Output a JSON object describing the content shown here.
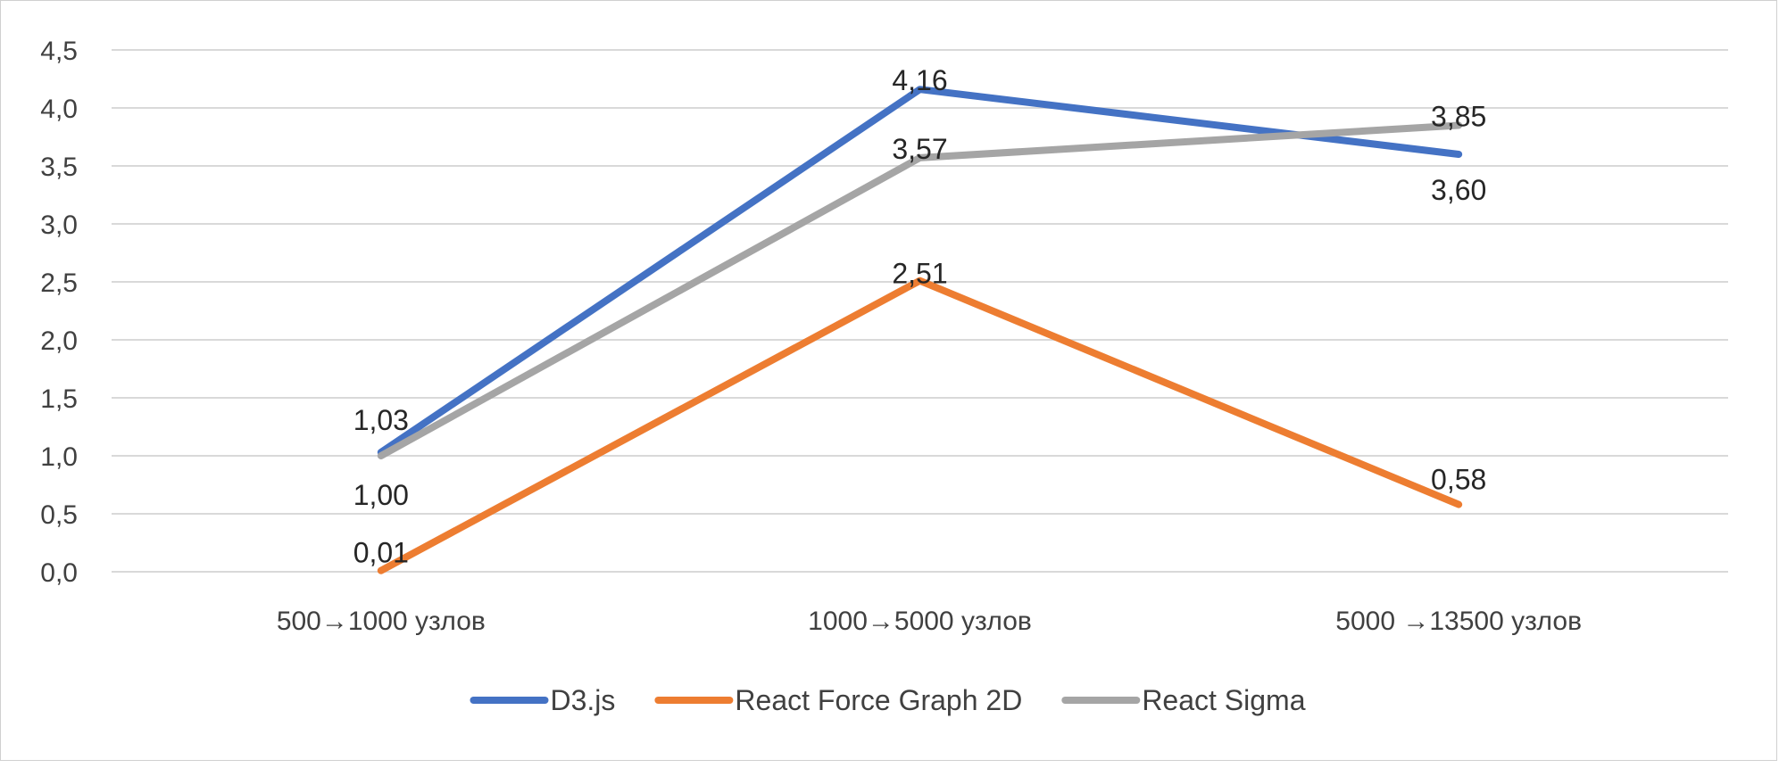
{
  "chart_data": {
    "type": "line",
    "categories": [
      "500→1000 узлов",
      "1000→5000 узлов",
      "5000 →13500 узлов"
    ],
    "series": [
      {
        "name": "D3.js",
        "color": "#4472c4",
        "values": [
          1.03,
          4.16,
          3.6
        ],
        "labels": [
          "1,03",
          "4,16",
          "3,60"
        ]
      },
      {
        "name": "React Force Graph 2D",
        "color": "#ed7d31",
        "values": [
          0.01,
          2.51,
          0.58
        ],
        "labels": [
          "0,01",
          "2,51",
          "0,58"
        ]
      },
      {
        "name": "React Sigma",
        "color": "#a5a5a5",
        "values": [
          1.0,
          3.57,
          3.85
        ],
        "labels": [
          "1,00",
          "3,57",
          "3,85"
        ]
      }
    ],
    "yticks": [
      "0,0",
      "0,5",
      "1,0",
      "1,5",
      "2,0",
      "2,5",
      "3,0",
      "3,5",
      "4,0",
      "4,5"
    ],
    "ylim": [
      0,
      4.5
    ],
    "ystep": 0.5,
    "grid": true,
    "legend": "bottom",
    "gridColor": "#d9d9d9"
  }
}
